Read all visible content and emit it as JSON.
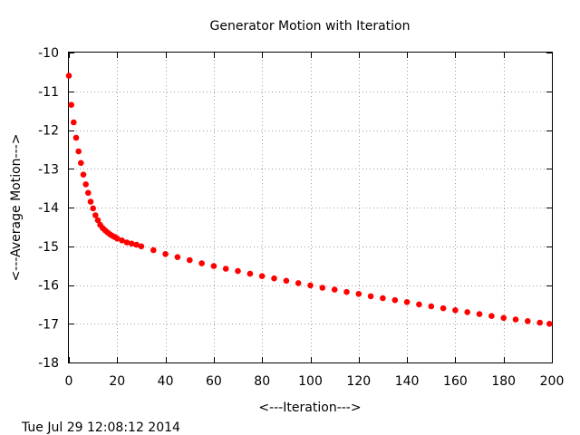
{
  "chart_data": {
    "type": "scatter",
    "title": "Generator Motion with Iteration",
    "xlabel": "<---Iteration--->",
    "ylabel": "<---Average Motion--->",
    "xlim": [
      0,
      200
    ],
    "ylim": [
      -18,
      -10
    ],
    "xticks": [
      0,
      20,
      40,
      60,
      80,
      100,
      120,
      140,
      160,
      180,
      200
    ],
    "yticks": [
      -10,
      -11,
      -12,
      -13,
      -14,
      -15,
      -16,
      -17,
      -18
    ],
    "grid": true,
    "legend": "none",
    "series": [
      {
        "color": "#ff0000",
        "marker": "circle",
        "x": [
          0,
          1,
          2,
          3,
          4,
          5,
          6,
          7,
          8,
          9,
          10,
          11,
          12,
          13,
          14,
          15,
          16,
          17,
          18,
          19,
          20,
          22,
          24,
          26,
          28,
          30,
          35,
          40,
          45,
          50,
          55,
          60,
          65,
          70,
          75,
          80,
          85,
          90,
          95,
          100,
          105,
          110,
          115,
          120,
          125,
          130,
          135,
          140,
          145,
          150,
          155,
          160,
          165,
          170,
          175,
          180,
          185,
          190,
          195,
          199
        ],
        "y": [
          -10.6,
          -11.35,
          -11.8,
          -12.2,
          -12.55,
          -12.85,
          -13.15,
          -13.4,
          -13.62,
          -13.85,
          -14.02,
          -14.2,
          -14.33,
          -14.45,
          -14.53,
          -14.59,
          -14.64,
          -14.69,
          -14.73,
          -14.76,
          -14.8,
          -14.85,
          -14.9,
          -14.93,
          -14.96,
          -15.0,
          -15.1,
          -15.2,
          -15.28,
          -15.36,
          -15.44,
          -15.51,
          -15.58,
          -15.64,
          -15.71,
          -15.77,
          -15.83,
          -15.89,
          -15.95,
          -16.01,
          -16.07,
          -16.12,
          -16.18,
          -16.23,
          -16.29,
          -16.34,
          -16.39,
          -16.44,
          -16.5,
          -16.55,
          -16.6,
          -16.65,
          -16.7,
          -16.75,
          -16.8,
          -16.85,
          -16.89,
          -16.93,
          -16.97,
          -17.0
        ]
      }
    ]
  },
  "footer": {
    "timestamp": "Tue Jul 29 12:08:12 2014"
  }
}
